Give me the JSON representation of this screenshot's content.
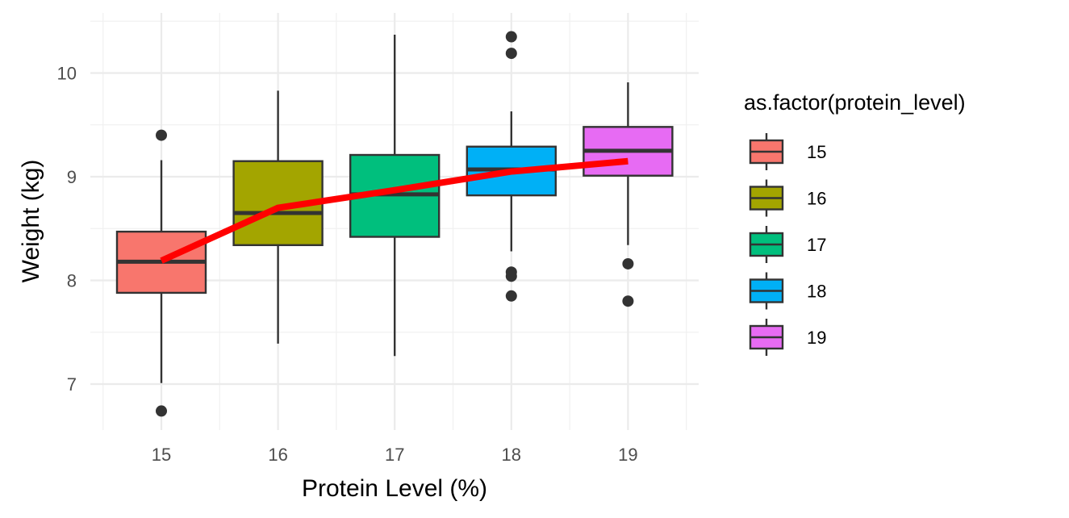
{
  "chart_data": {
    "type": "boxplot",
    "xlabel": "Protein Level (%)",
    "ylabel": "Weight (kg)",
    "ylim": [
      6.55,
      10.6
    ],
    "y_ticks": [
      7,
      8,
      9,
      10
    ],
    "y_tick_labels": [
      "7",
      "8",
      "9",
      "10"
    ],
    "categories": [
      "15",
      "16",
      "17",
      "18",
      "19"
    ],
    "colors": [
      "#F8766D",
      "#A3A500",
      "#00BF7D",
      "#00B0F6",
      "#E76BF3"
    ],
    "outline_color": "#333333",
    "line_color": "#FF0000",
    "legend": {
      "title": "as.factor(protein_level)",
      "labels": [
        "15",
        "16",
        "17",
        "18",
        "19"
      ],
      "position": "right"
    },
    "boxes": [
      {
        "category": "15",
        "whisker_low": 7.01,
        "q1": 7.88,
        "median": 8.18,
        "q3": 8.47,
        "whisker_high": 9.16,
        "outliers": [
          9.4,
          6.74
        ]
      },
      {
        "category": "16",
        "whisker_low": 7.39,
        "q1": 8.34,
        "median": 8.65,
        "q3": 9.15,
        "whisker_high": 9.83,
        "outliers": []
      },
      {
        "category": "17",
        "whisker_low": 7.27,
        "q1": 8.42,
        "median": 8.83,
        "q3": 9.21,
        "whisker_high": 10.37,
        "outliers": []
      },
      {
        "category": "18",
        "whisker_low": 8.28,
        "q1": 8.82,
        "median": 9.07,
        "q3": 9.29,
        "whisker_high": 9.63,
        "outliers": [
          10.35,
          10.19,
          8.08,
          8.04,
          7.85
        ]
      },
      {
        "category": "19",
        "whisker_low": 8.34,
        "q1": 9.01,
        "median": 9.25,
        "q3": 9.48,
        "whisker_high": 9.91,
        "outliers": [
          8.16,
          7.8
        ]
      }
    ],
    "mean_line": {
      "x": [
        "15",
        "16",
        "17",
        "18",
        "19"
      ],
      "values": [
        8.19,
        8.7,
        8.87,
        9.05,
        9.15
      ]
    }
  }
}
